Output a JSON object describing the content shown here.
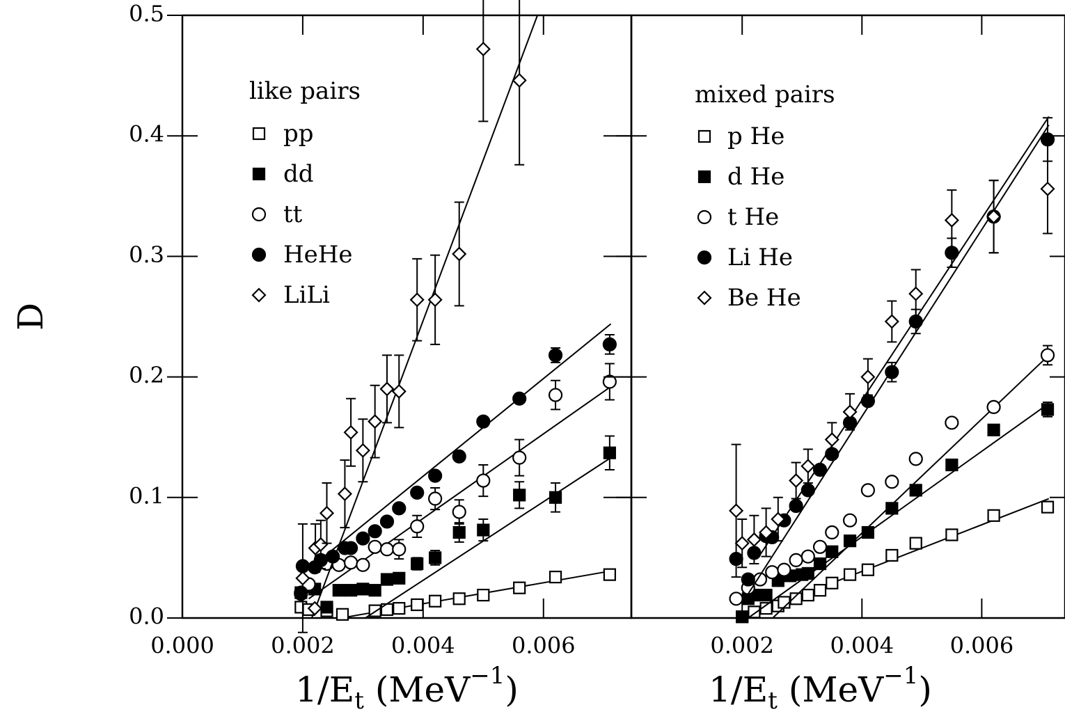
{
  "chart_data": [
    {
      "type": "scatter",
      "ylabel": "D",
      "xlabel": {
        "main": "1/E",
        "sub": "t",
        "open": " (MeV",
        "sup": "−1",
        "close": ")"
      },
      "legend_title": "like pairs",
      "xlim": [
        0,
        0.00746
      ],
      "ylim": [
        0,
        0.5
      ],
      "xticks": [
        {
          "value": 0,
          "label": "0.000"
        },
        0.002,
        0.004,
        0.006
      ],
      "yticks": [
        {
          "value": 0,
          "label": "0.0"
        },
        0.1,
        0.2,
        0.3,
        0.4,
        0.5
      ],
      "series": [
        {
          "name": "pp",
          "marker": "square",
          "filled": false,
          "color": "#000000",
          "x": [
            0.00197,
            0.0021,
            0.0024,
            0.00266,
            0.0032,
            0.0034,
            0.0036,
            0.0039,
            0.0042,
            0.0046,
            0.005,
            0.0056,
            0.0062,
            0.0071
          ],
          "values": [
            0.009,
            0.007,
            0.006,
            0.003,
            0.006,
            0.007,
            0.008,
            0.011,
            0.014,
            0.016,
            0.019,
            0.025,
            0.034,
            0.036
          ],
          "fit": {
            "x": [
              0.00264,
              0.00712
            ],
            "values": [
              0,
              0.039
            ]
          }
        },
        {
          "name": "dd",
          "marker": "square",
          "filled": true,
          "color": "#000000",
          "x": [
            0.00197,
            0.0021,
            0.0022,
            0.0024,
            0.0026,
            0.0028,
            0.003,
            0.0032,
            0.0034,
            0.0036,
            0.0039,
            0.0042,
            0.0046,
            0.005,
            0.0056,
            0.0062,
            0.0071
          ],
          "values": [
            0.021,
            0.026,
            0.024,
            0.009,
            0.023,
            0.023,
            0.024,
            0.023,
            0.032,
            0.033,
            0.045,
            0.05,
            0.071,
            0.073,
            0.102,
            0.1,
            0.137
          ],
          "errors": [
            null,
            null,
            null,
            null,
            null,
            null,
            null,
            null,
            null,
            null,
            0.005,
            0.006,
            0.008,
            0.009,
            0.011,
            0.012,
            0.014
          ],
          "fit": {
            "x": [
              0.00304,
              0.00712
            ],
            "values": [
              0,
              0.133
            ]
          }
        },
        {
          "name": "tt",
          "marker": "circle",
          "filled": false,
          "color": "#000000",
          "x": [
            0.00197,
            0.0021,
            0.0024,
            0.0026,
            0.0028,
            0.003,
            0.0032,
            0.0034,
            0.0036,
            0.0039,
            0.0042,
            0.0046,
            0.005,
            0.0056,
            0.0062,
            0.0071
          ],
          "values": [
            0.02,
            0.028,
            0.045,
            0.044,
            0.046,
            0.044,
            0.059,
            0.057,
            0.057,
            0.076,
            0.099,
            0.088,
            0.114,
            0.133,
            0.185,
            0.196
          ],
          "errors": [
            null,
            null,
            null,
            null,
            null,
            null,
            null,
            null,
            0.008,
            0.009,
            0.009,
            0.01,
            0.013,
            0.015,
            0.012,
            0.015
          ],
          "fit": {
            "x": [
              0.0021,
              0.00712
            ],
            "values": [
              0.016,
              0.192
            ]
          }
        },
        {
          "name": "HeHe",
          "marker": "circle",
          "filled": true,
          "color": "#000000",
          "x": [
            0.00197,
            0.002,
            0.0022,
            0.0023,
            0.0025,
            0.0027,
            0.0028,
            0.003,
            0.0032,
            0.0034,
            0.0036,
            0.0039,
            0.0042,
            0.0046,
            0.005,
            0.0056,
            0.0062,
            0.0071
          ],
          "values": [
            0.021,
            0.043,
            0.042,
            0.048,
            0.051,
            0.058,
            0.058,
            0.066,
            0.072,
            0.08,
            0.091,
            0.104,
            0.118,
            0.134,
            0.163,
            0.182,
            0.218,
            0.227
          ],
          "errors": [
            null,
            null,
            null,
            null,
            null,
            null,
            null,
            null,
            null,
            null,
            null,
            null,
            null,
            null,
            null,
            null,
            0.006,
            0.008
          ],
          "fit": {
            "x": [
              0.00206,
              0.00712
            ],
            "values": [
              0.039,
              0.244
            ]
          }
        },
        {
          "name": "LiLi",
          "marker": "diamond",
          "filled": false,
          "color": "#000000",
          "x": [
            0.002,
            0.0022,
            0.00221,
            0.0023,
            0.0024,
            0.0027,
            0.0028,
            0.003,
            0.0032,
            0.0034,
            0.0036,
            0.0039,
            0.0042,
            0.0046,
            0.005,
            0.0056
          ],
          "values": [
            0.033,
            0.008,
            0.058,
            0.061,
            0.087,
            0.103,
            0.154,
            0.139,
            0.163,
            0.19,
            0.188,
            0.264,
            0.264,
            0.302,
            0.472,
            0.446
          ],
          "errors": [
            0.045,
            null,
            0.02,
            0.02,
            0.025,
            0.028,
            0.028,
            0.026,
            0.03,
            0.028,
            0.03,
            0.034,
            0.037,
            0.043,
            0.06,
            0.07
          ],
          "fit": {
            "x": [
              0.00215,
              0.0059
            ],
            "values": [
              0,
              0.5
            ]
          }
        }
      ]
    },
    {
      "type": "scatter",
      "xlabel": {
        "main": "1/E",
        "sub": "t",
        "open": " (MeV",
        "sup": "−1",
        "close": ")"
      },
      "legend_title": "mixed pairs",
      "xlim": [
        0.00015,
        0.00739
      ],
      "ylim": [
        0,
        0.5
      ],
      "xticks": [
        0.002,
        0.004,
        0.006
      ],
      "yticks": [
        {
          "value": 0,
          "label": "0.0"
        },
        0.1,
        0.2,
        0.3,
        0.4,
        0.5
      ],
      "series": [
        {
          "name": "p He",
          "marker": "square",
          "filled": false,
          "color": "#000000",
          "x": [
            0.002,
            0.0022,
            0.0024,
            0.0026,
            0.0027,
            0.0029,
            0.0031,
            0.0033,
            0.0035,
            0.0038,
            0.0041,
            0.0045,
            0.0049,
            0.0055,
            0.0062,
            0.0071
          ],
          "values": [
            0.001,
            0.005,
            0.008,
            0.01,
            0.013,
            0.016,
            0.019,
            0.023,
            0.029,
            0.036,
            0.04,
            0.052,
            0.062,
            0.069,
            0.085,
            0.092
          ],
          "fit": {
            "x": [
              0.002,
              0.00712
            ],
            "values": [
              0,
              0.099
            ]
          }
        },
        {
          "name": "d He",
          "marker": "square",
          "filled": true,
          "color": "#000000",
          "x": [
            0.002,
            0.0021,
            0.0022,
            0.0024,
            0.0026,
            0.0028,
            0.003,
            0.0031,
            0.0033,
            0.0035,
            0.0038,
            0.0041,
            0.0045,
            0.0049,
            0.0055,
            0.0062,
            0.0071
          ],
          "values": [
            0.001,
            0.016,
            0.019,
            0.019,
            0.031,
            0.035,
            0.036,
            0.037,
            0.045,
            0.055,
            0.064,
            0.071,
            0.091,
            0.106,
            0.127,
            0.156,
            0.173
          ],
          "errors": [
            null,
            null,
            null,
            null,
            null,
            null,
            null,
            null,
            null,
            null,
            null,
            null,
            null,
            null,
            null,
            null,
            0.006
          ],
          "fit": {
            "x": [
              0.0021,
              0.00712
            ],
            "values": [
              0,
              0.178
            ]
          }
        },
        {
          "name": "t He",
          "marker": "circle",
          "filled": false,
          "color": "#000000",
          "x": [
            0.0019,
            0.0021,
            0.0023,
            0.0025,
            0.0027,
            0.0029,
            0.0031,
            0.0033,
            0.0035,
            0.0038,
            0.0041,
            0.0045,
            0.0049,
            0.0055,
            0.0062,
            0.0071
          ],
          "values": [
            0.016,
            0.025,
            0.032,
            0.038,
            0.04,
            0.048,
            0.051,
            0.059,
            0.071,
            0.081,
            0.106,
            0.113,
            0.132,
            0.162,
            0.175,
            0.218
          ],
          "errors": [
            null,
            null,
            null,
            null,
            null,
            null,
            null,
            null,
            null,
            null,
            null,
            null,
            null,
            null,
            null,
            0.008
          ],
          "fit": {
            "x": [
              0.00251,
              0.00712
            ],
            "values": [
              0,
              0.218
            ]
          }
        },
        {
          "name": "Li He",
          "marker": "circle",
          "filled": true,
          "color": "#000000",
          "x": [
            0.0019,
            0.0021,
            0.0022,
            0.0024,
            0.0025,
            0.0027,
            0.0029,
            0.0031,
            0.0033,
            0.0035,
            0.0038,
            0.0041,
            0.0045,
            0.0049,
            0.0055,
            0.0062,
            0.0071
          ],
          "values": [
            0.049,
            0.032,
            0.054,
            0.068,
            0.067,
            0.081,
            0.093,
            0.106,
            0.123,
            0.136,
            0.162,
            0.18,
            0.204,
            0.246,
            0.303,
            0.333,
            0.397
          ],
          "errors": [
            null,
            null,
            null,
            null,
            null,
            null,
            null,
            null,
            null,
            null,
            null,
            null,
            0.008,
            0.01,
            0.012,
            0.03,
            0.018
          ],
          "fit": {
            "x": [
              0.0021,
              0.00712
            ],
            "values": [
              0.02,
              0.409
            ]
          }
        },
        {
          "name": "Be He",
          "marker": "diamond",
          "filled": false,
          "color": "#000000",
          "x": [
            0.0019,
            0.002,
            0.0022,
            0.0024,
            0.0026,
            0.0029,
            0.0031,
            0.0035,
            0.0038,
            0.0041,
            0.0045,
            0.0049,
            0.0055,
            0.0062,
            0.0071
          ],
          "values": [
            0.089,
            0.062,
            0.065,
            0.071,
            0.082,
            0.114,
            0.126,
            0.148,
            0.171,
            0.2,
            0.246,
            0.269,
            0.33,
            0.333,
            0.356
          ],
          "errors": [
            0.055,
            0.02,
            0.02,
            0.02,
            0.018,
            0.015,
            0.014,
            0.014,
            0.015,
            0.015,
            0.017,
            0.02,
            0.025,
            0.03,
            0.037
          ],
          "fit": {
            "x": [
              0.00228,
              0.00712
            ],
            "values": [
              0.051,
              0.416
            ]
          }
        }
      ]
    }
  ]
}
